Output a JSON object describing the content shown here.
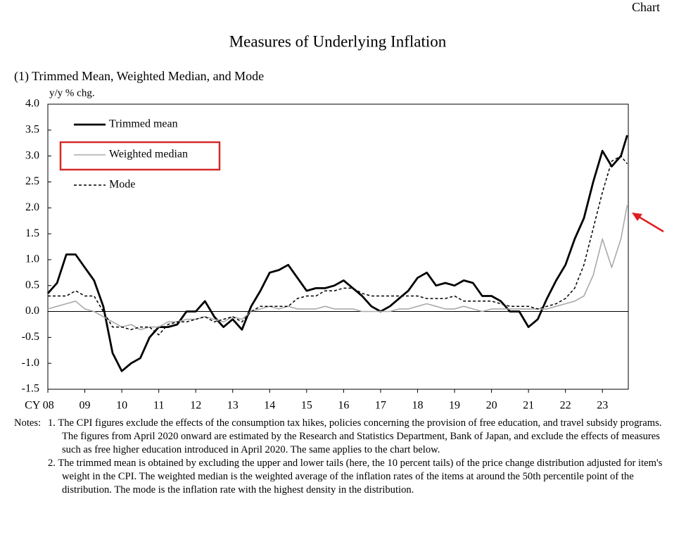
{
  "corner_label": "Chart",
  "chart_data": {
    "type": "line",
    "title": "Measures of Underlying Inflation",
    "subtitle": "(1) Trimmed Mean, Weighted Median, and Mode",
    "y_label": "y/y % chg.",
    "x": [
      2008,
      2008.25,
      2008.5,
      2008.75,
      2009,
      2009.25,
      2009.5,
      2009.75,
      2010,
      2010.25,
      2010.5,
      2010.75,
      2011,
      2011.25,
      2011.5,
      2011.75,
      2012,
      2012.25,
      2012.5,
      2012.75,
      2013,
      2013.25,
      2013.5,
      2013.75,
      2014,
      2014.25,
      2014.5,
      2014.75,
      2015,
      2015.25,
      2015.5,
      2015.75,
      2016,
      2016.25,
      2016.5,
      2016.75,
      2017,
      2017.25,
      2017.5,
      2017.75,
      2018,
      2018.25,
      2018.5,
      2018.75,
      2019,
      2019.25,
      2019.5,
      2019.75,
      2020,
      2020.25,
      2020.5,
      2020.75,
      2021,
      2021.25,
      2021.5,
      2021.75,
      2022,
      2022.25,
      2022.5,
      2022.75,
      2023,
      2023.25,
      2023.5,
      2023.67
    ],
    "series": [
      {
        "name": "Trimmed mean",
        "color": "#000000",
        "line_style": "solid",
        "values": [
          0.35,
          0.55,
          1.1,
          1.1,
          0.85,
          0.6,
          0.1,
          -0.8,
          -1.15,
          -1.0,
          -0.9,
          -0.5,
          -0.3,
          -0.3,
          -0.25,
          0.0,
          0.0,
          0.2,
          -0.1,
          -0.3,
          -0.15,
          -0.35,
          0.1,
          0.4,
          0.75,
          0.8,
          0.9,
          0.65,
          0.4,
          0.45,
          0.45,
          0.5,
          0.6,
          0.45,
          0.3,
          0.1,
          0.0,
          0.1,
          0.25,
          0.4,
          0.65,
          0.75,
          0.5,
          0.55,
          0.5,
          0.6,
          0.55,
          0.3,
          0.3,
          0.2,
          0.0,
          0.0,
          -0.3,
          -0.15,
          0.25,
          0.6,
          0.9,
          1.4,
          1.8,
          2.5,
          3.1,
          2.8,
          3.0,
          3.4
        ]
      },
      {
        "name": "Weighted median",
        "color": "#aaaaaa",
        "line_style": "solid",
        "values": [
          0.05,
          0.1,
          0.15,
          0.2,
          0.05,
          0.0,
          -0.1,
          -0.2,
          -0.3,
          -0.25,
          -0.35,
          -0.3,
          -0.3,
          -0.2,
          -0.2,
          -0.15,
          -0.15,
          -0.1,
          -0.15,
          -0.2,
          -0.1,
          -0.15,
          0.0,
          0.05,
          0.1,
          0.05,
          0.1,
          0.05,
          0.05,
          0.05,
          0.1,
          0.05,
          0.05,
          0.05,
          0.0,
          0.0,
          0.0,
          0.0,
          0.05,
          0.05,
          0.1,
          0.15,
          0.1,
          0.05,
          0.05,
          0.1,
          0.05,
          0.0,
          0.05,
          0.05,
          0.05,
          0.05,
          0.05,
          0.05,
          0.05,
          0.1,
          0.15,
          0.2,
          0.3,
          0.7,
          1.4,
          0.85,
          1.4,
          2.05
        ]
      },
      {
        "name": "Mode",
        "color": "#000000",
        "line_style": "dashed",
        "values": [
          0.3,
          0.3,
          0.3,
          0.4,
          0.3,
          0.3,
          0.0,
          -0.3,
          -0.3,
          -0.35,
          -0.3,
          -0.3,
          -0.45,
          -0.25,
          -0.2,
          -0.2,
          -0.15,
          -0.1,
          -0.2,
          -0.15,
          -0.1,
          -0.2,
          0.0,
          0.1,
          0.1,
          0.1,
          0.1,
          0.25,
          0.3,
          0.3,
          0.4,
          0.4,
          0.45,
          0.45,
          0.35,
          0.3,
          0.3,
          0.3,
          0.3,
          0.3,
          0.3,
          0.25,
          0.25,
          0.25,
          0.3,
          0.2,
          0.2,
          0.2,
          0.2,
          0.15,
          0.1,
          0.1,
          0.1,
          0.05,
          0.1,
          0.15,
          0.25,
          0.45,
          0.9,
          1.6,
          2.3,
          2.9,
          3.0,
          2.85
        ]
      }
    ],
    "xlim": [
      2008,
      2023.7
    ],
    "xticks": [
      {
        "value": 2008,
        "label": "CY 08"
      },
      {
        "value": 2009,
        "label": "09"
      },
      {
        "value": 2010,
        "label": "10"
      },
      {
        "value": 2011,
        "label": "11"
      },
      {
        "value": 2012,
        "label": "12"
      },
      {
        "value": 2013,
        "label": "13"
      },
      {
        "value": 2014,
        "label": "14"
      },
      {
        "value": 2015,
        "label": "15"
      },
      {
        "value": 2016,
        "label": "16"
      },
      {
        "value": 2017,
        "label": "17"
      },
      {
        "value": 2018,
        "label": "18"
      },
      {
        "value": 2019,
        "label": "19"
      },
      {
        "value": 2020,
        "label": "20"
      },
      {
        "value": 2021,
        "label": "21"
      },
      {
        "value": 2022,
        "label": "22"
      },
      {
        "value": 2023,
        "label": "23"
      }
    ],
    "ylim": [
      -1.5,
      4
    ],
    "yticks": [
      {
        "value": 4,
        "label": "4.0"
      },
      3.5,
      {
        "value": 3,
        "label": "3.0"
      },
      2.5,
      {
        "value": 2,
        "label": "2.0"
      },
      1.5,
      {
        "value": 1,
        "label": "1.0"
      },
      0.5,
      {
        "value": 0,
        "label": "0.0"
      },
      -0.5,
      {
        "value": -1,
        "label": "-1.0"
      },
      -1.5
    ],
    "legend": "upper left"
  },
  "notes": {
    "heading": "Notes:",
    "items": [
      "1. The CPI figures exclude the effects of the consumption tax hikes, policies concerning the provision of free education, and travel subsidy programs. The figures from April 2020 onward are estimated by the Research and Statistics Department, Bank of Japan, and exclude the effects of measures such as free higher education introduced in April 2020. The same applies to the chart below.",
      "2. The trimmed mean is obtained by excluding the upper and lower tails (here, the 10 percent tails) of the price change distribution adjusted for item's weight in the CPI. The weighted median is the weighted average of the inflation rates of the items at around the 50th percentile point of the distribution. The mode is the inflation rate with the highest density in the distribution."
    ]
  }
}
